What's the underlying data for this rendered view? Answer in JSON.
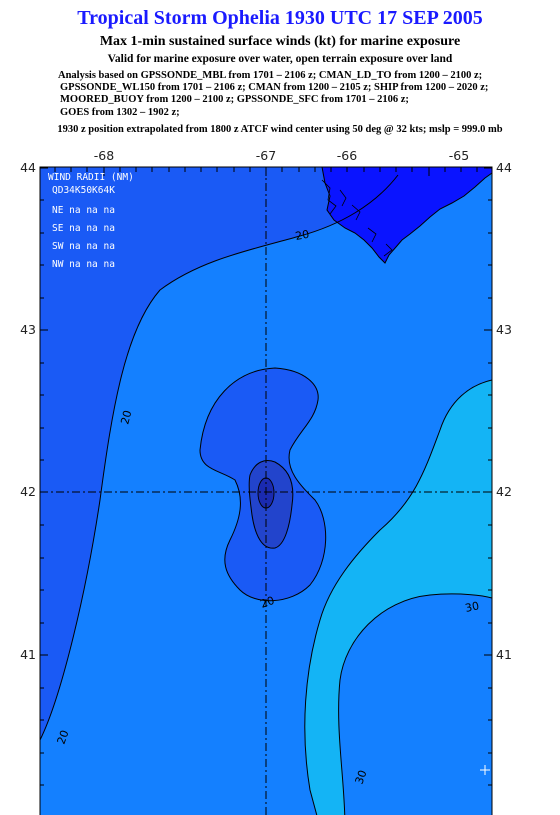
{
  "header": {
    "title": "Tropical Storm Ophelia 1930 UTC 17 SEP 2005",
    "subtitle": "Max 1-min sustained surface winds (kt) for marine exposure",
    "valid_note": "Valid for marine exposure over water, open terrain exposure over land",
    "analysis_lines": [
      "Analysis based on  GPSSONDE_MBL from 1701 – 2106 z;  CMAN_LD_TO from 1200 – 2100 z;",
      "GPSSONDE_WL150 from 1701 – 2106 z;  CMAN from 1200 – 2105 z;  SHIP from 1200 – 2020 z;",
      "MOORED_BUOY from 1200 – 2100 z;  GPSSONDE_SFC from 1701 – 2106 z;",
      "GOES from 1302 – 1902 z;"
    ],
    "position_note": "1930 z position extrapolated from 1800 z ATCF wind center using 50 deg @ 32 kts; mslp = 999.0 mb"
  },
  "map": {
    "lon_labels": [
      "-68",
      "-67",
      "-66",
      "-65"
    ],
    "lat_labels": [
      "44",
      "43",
      "42",
      "41"
    ],
    "contour_labels": [
      "20",
      "20",
      "20",
      "30",
      "20",
      "30"
    ],
    "wind_radii": {
      "title": "WIND RADII (NM)",
      "header": "QD34K50K64K",
      "rows": [
        "NE na na na",
        "SE na na na",
        "SW na na na",
        "NW na na na"
      ]
    },
    "colors": {
      "land": "#0a14ff",
      "lt20": "#1a5af5",
      "w20_30": "#1480ff",
      "w30_40": "#14b4f5",
      "core": "#2244cc",
      "center": "#1a2ab0"
    },
    "storm_center": {
      "lon": -66.98,
      "lat": 42.0
    }
  }
}
